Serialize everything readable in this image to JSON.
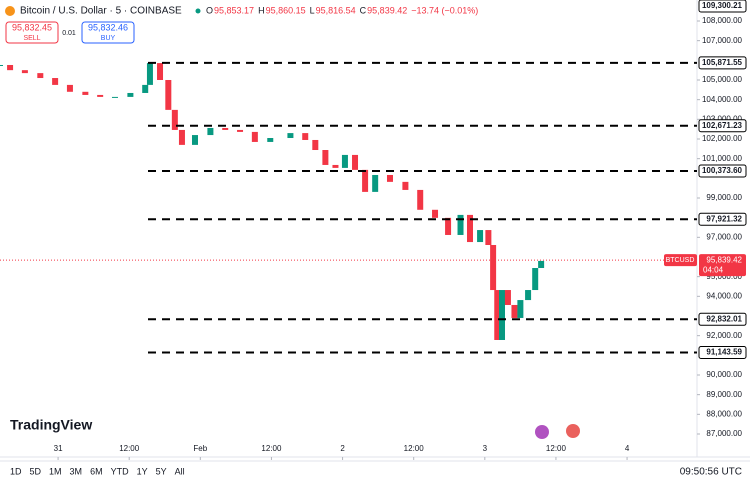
{
  "header": {
    "symbol": "Bitcoin / U.S. Dollar · 5 · COINBASE",
    "ohlc": [
      {
        "label": "O",
        "value": "95,853.17"
      },
      {
        "label": "H",
        "value": "95,860.15"
      },
      {
        "label": "L",
        "value": "95,816.54"
      },
      {
        "label": "C",
        "value": "95,839.42"
      }
    ],
    "change": "−13.74 (−0.01%)"
  },
  "trade": {
    "sell_price": "95,832.45",
    "sell_label": "SELL",
    "spread": "0.01",
    "buy_price": "95,832.46",
    "buy_label": "BUY"
  },
  "chart_data": {
    "type": "candlestick",
    "up_color": "#089981",
    "down_color": "#f23645",
    "x": [
      -9.8,
      -8.1,
      -5.6,
      -3.0,
      -0.5,
      2.0,
      4.6,
      7.1,
      9.6,
      12.2,
      14.7,
      15.5,
      17.2,
      18.6,
      19.7,
      20.9,
      23.1,
      25.7,
      28.2,
      30.7,
      33.2,
      35.8,
      39.2,
      41.7,
      43.4,
      45.1,
      46.8,
      48.4,
      50.1,
      51.8,
      53.5,
      56.0,
      58.6,
      61.1,
      63.6,
      65.8,
      67.9,
      69.5,
      71.2,
      72.6,
      73.4,
      74.1,
      74.9,
      75.9,
      77.0,
      78.0,
      79.3,
      80.5,
      81.5
    ],
    "values": [
      105763,
      105500,
      105350,
      105100,
      104750,
      104400,
      104240,
      104140,
      104140,
      104340,
      104750,
      105860,
      105000,
      103480,
      102460,
      101700,
      102200,
      102560,
      102460,
      102360,
      101850,
      102050,
      102300,
      101950,
      101440,
      100680,
      100530,
      101190,
      100430,
      99310,
      100170,
      99820,
      99410,
      98400,
      97990,
      97120,
      98140,
      96760,
      97370,
      96610,
      94320,
      91780,
      94320,
      93560,
      92900,
      93810,
      94320,
      95440,
      95800
    ],
    "xlim": [
      -9.8,
      107.8
    ],
    "ylim": [
      85830,
      108915
    ],
    "xticks": [
      {
        "value": 0,
        "label": "31"
      },
      {
        "value": 12,
        "label": "12:00"
      },
      {
        "value": 24,
        "label": "Feb"
      },
      {
        "value": 36,
        "label": "12:00"
      },
      {
        "value": 48,
        "label": "2"
      },
      {
        "value": 60,
        "label": "12:00"
      },
      {
        "value": 72,
        "label": "3"
      },
      {
        "value": 84,
        "label": "12:00"
      },
      {
        "value": 96,
        "label": "4"
      }
    ],
    "yticks": [
      {
        "value": 108000,
        "label": "108,000.00"
      },
      {
        "value": 107000,
        "label": "107,000.00"
      },
      {
        "value": 105000,
        "label": "105,000.00"
      },
      {
        "value": 104000,
        "label": "104,000.00"
      },
      {
        "value": 103000,
        "label": "103,000.00"
      },
      {
        "value": 102000,
        "label": "102,000.00"
      },
      {
        "value": 101000,
        "label": "101,000.00"
      },
      {
        "value": 99000,
        "label": "99,000.00"
      },
      {
        "value": 97000,
        "label": "97,000.00"
      },
      {
        "value": 95000,
        "label": "95,000.00"
      },
      {
        "value": 94000,
        "label": "94,000.00"
      },
      {
        "value": 92000,
        "label": "92,000.00"
      },
      {
        "value": 90000,
        "label": "90,000.00"
      },
      {
        "value": 89000,
        "label": "89,000.00"
      },
      {
        "value": 88000,
        "label": "88,000.00"
      },
      {
        "value": 87000,
        "label": "87,000.00"
      }
    ],
    "levels": [
      {
        "value": 105871.55,
        "label": "105,871.55"
      },
      {
        "value": 102671.23,
        "label": "102,671.23"
      },
      {
        "value": 100373.6,
        "label": "100,373.60"
      },
      {
        "value": 97921.32,
        "label": "97,921.32"
      },
      {
        "value": 92832.01,
        "label": "92,832.01"
      },
      {
        "value": 91143.59,
        "label": "91,143.59"
      }
    ],
    "top_tag": "109,300.21",
    "last_price": {
      "value": 95839.42,
      "label": "95,839.42",
      "countdown": "04:04",
      "symbol": "BTCUSD"
    }
  },
  "logo": "TradingView",
  "toolbar": {
    "ranges": [
      "1D",
      "5D",
      "1M",
      "3M",
      "6M",
      "YTD",
      "1Y",
      "5Y",
      "All"
    ],
    "clock": "09:50:56 UTC"
  }
}
